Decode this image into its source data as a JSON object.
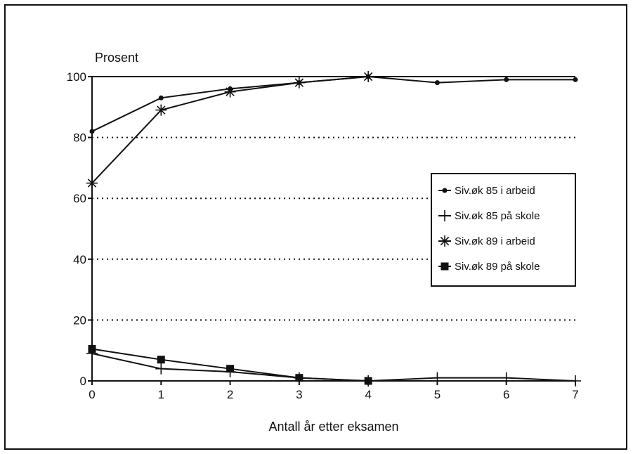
{
  "chart_data": {
    "type": "line",
    "ylabel": "Prosent",
    "xlabel": "Antall år etter eksamen",
    "x": [
      0,
      1,
      2,
      3,
      4,
      5,
      6,
      7
    ],
    "xlim": [
      0,
      7
    ],
    "ylim": [
      0,
      100
    ],
    "yticks": [
      0,
      20,
      40,
      60,
      80,
      100
    ],
    "grid": "horizontal dotted",
    "legend_placement": "right",
    "series": [
      {
        "name": "Siv.øk 85 i arbeid",
        "marker": "dot",
        "values": [
          82,
          93,
          96,
          98,
          100,
          98,
          99,
          99
        ]
      },
      {
        "name": "Siv.øk 85 på skole",
        "marker": "plus",
        "values": [
          9,
          4,
          3,
          1,
          0,
          1,
          1,
          0
        ]
      },
      {
        "name": "Siv.øk 89 i arbeid",
        "marker": "star",
        "values": [
          65,
          89,
          95,
          98,
          100,
          null,
          null,
          null
        ]
      },
      {
        "name": "Siv.øk 89 på skole",
        "marker": "square",
        "values": [
          10.5,
          7,
          4,
          1,
          0,
          null,
          null,
          null
        ]
      }
    ],
    "colors": {
      "line": "#111111",
      "grid": "#111111"
    }
  }
}
